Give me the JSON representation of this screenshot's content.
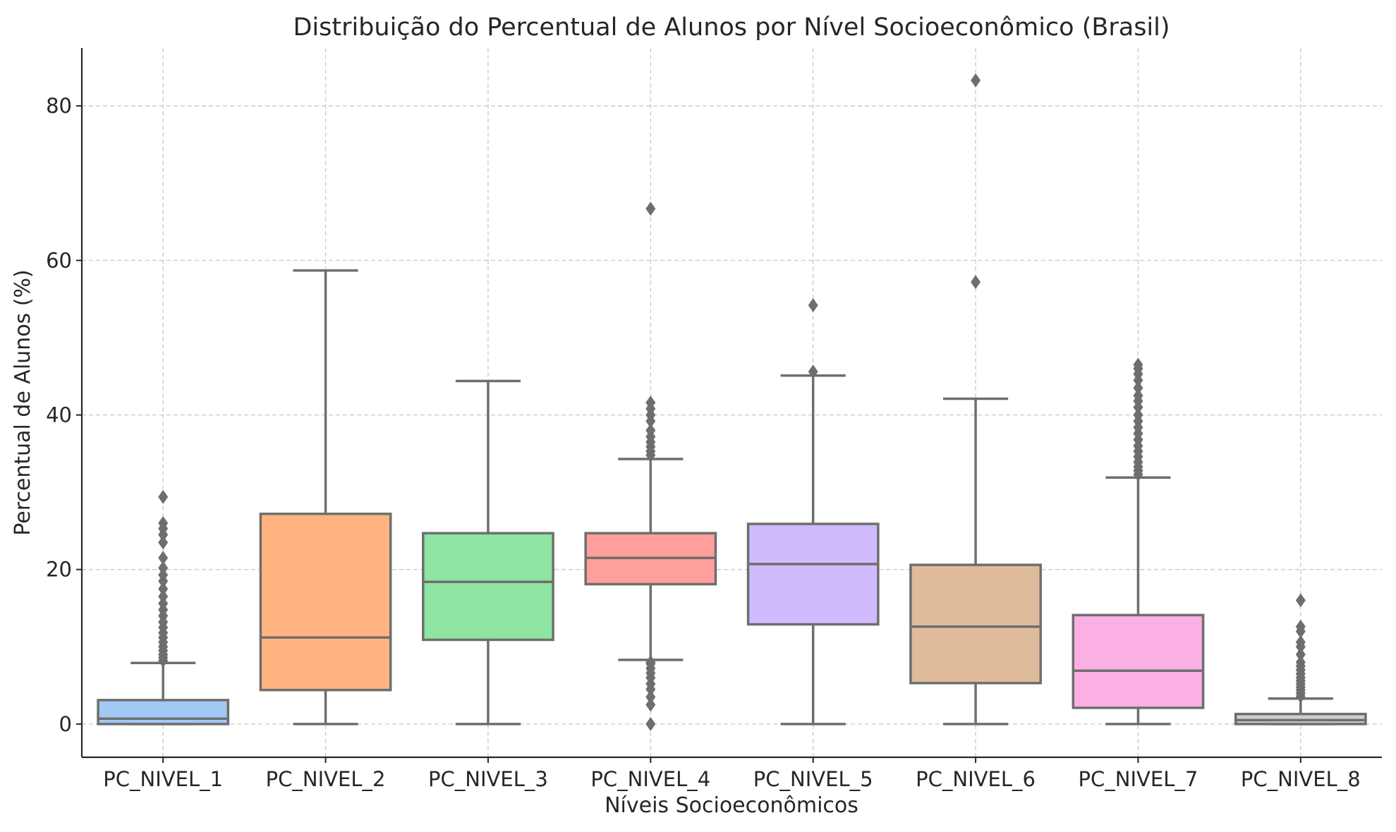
{
  "chart_data": {
    "type": "box",
    "title": "Distribuição do Percentual de Alunos por Nível Socioeconômico (Brasil)",
    "xlabel": "Níveis Socioeconômicos",
    "ylabel": "Percentual de Alunos (%)",
    "ylim": [
      -4.3,
      87.5
    ],
    "yticks": [
      0,
      20,
      40,
      60,
      80
    ],
    "grid": true,
    "categories": [
      "PC_NIVEL_1",
      "PC_NIVEL_2",
      "PC_NIVEL_3",
      "PC_NIVEL_4",
      "PC_NIVEL_5",
      "PC_NIVEL_6",
      "PC_NIVEL_7",
      "PC_NIVEL_8"
    ],
    "boxes": [
      {
        "name": "PC_NIVEL_1",
        "color": "#a1c9f4",
        "whislo": 0.0,
        "q1": 0.0,
        "med": 0.7,
        "q3": 3.1,
        "whishi": 7.9,
        "outliers": [
          8.2,
          8.6,
          9.0,
          9.5,
          10.0,
          10.6,
          11.2,
          11.8,
          12.5,
          13.2,
          14.0,
          14.8,
          15.6,
          16.5,
          17.5,
          18.5,
          19.3,
          20.2,
          21.5,
          23.5,
          24.5,
          25.3,
          26.0,
          29.4
        ]
      },
      {
        "name": "PC_NIVEL_2",
        "color": "#ffb482",
        "whislo": 0.0,
        "q1": 4.4,
        "med": 11.2,
        "q3": 27.2,
        "whishi": 58.7,
        "outliers": []
      },
      {
        "name": "PC_NIVEL_3",
        "color": "#8de5a1",
        "whislo": 0.0,
        "q1": 10.9,
        "med": 18.4,
        "q3": 24.7,
        "whishi": 44.4,
        "outliers": []
      },
      {
        "name": "PC_NIVEL_4",
        "color": "#ff9f9b",
        "whislo": 8.3,
        "q1": 18.1,
        "med": 21.5,
        "q3": 24.7,
        "whishi": 34.3,
        "outliers": [
          0.0,
          2.5,
          3.5,
          4.5,
          5.2,
          6.0,
          6.6,
          7.2,
          7.8,
          8.0,
          34.8,
          35.3,
          35.9,
          36.5,
          37.2,
          38.0,
          39.2,
          40.0,
          40.8,
          41.6,
          66.7
        ]
      },
      {
        "name": "PC_NIVEL_5",
        "color": "#d0bbff",
        "whislo": 0.0,
        "q1": 12.9,
        "med": 20.7,
        "q3": 25.9,
        "whishi": 45.1,
        "outliers": [
          45.6,
          54.2
        ]
      },
      {
        "name": "PC_NIVEL_6",
        "color": "#debb9b",
        "whislo": 0.0,
        "q1": 5.3,
        "med": 12.6,
        "q3": 20.6,
        "whishi": 42.1,
        "outliers": [
          57.2,
          83.3
        ]
      },
      {
        "name": "PC_NIVEL_7",
        "color": "#fab0e4",
        "whislo": 0.0,
        "q1": 2.1,
        "med": 6.9,
        "q3": 14.1,
        "whishi": 31.9,
        "outliers": [
          32.3,
          32.8,
          33.3,
          33.9,
          34.6,
          35.3,
          36.0,
          36.8,
          37.6,
          38.4,
          39.2,
          40.0,
          41.0,
          41.8,
          42.5,
          43.5,
          44.5,
          45.3,
          46.0,
          46.5
        ]
      },
      {
        "name": "PC_NIVEL_8",
        "color": "#cfcfcf",
        "whislo": 0.0,
        "q1": 0.0,
        "med": 0.5,
        "q3": 1.3,
        "whishi": 3.3,
        "outliers": [
          3.6,
          4.0,
          4.4,
          4.8,
          5.2,
          5.6,
          6.0,
          6.5,
          7.0,
          7.5,
          8.0,
          9.0,
          10.0,
          10.6,
          12.0,
          12.6,
          16.0
        ]
      }
    ]
  }
}
